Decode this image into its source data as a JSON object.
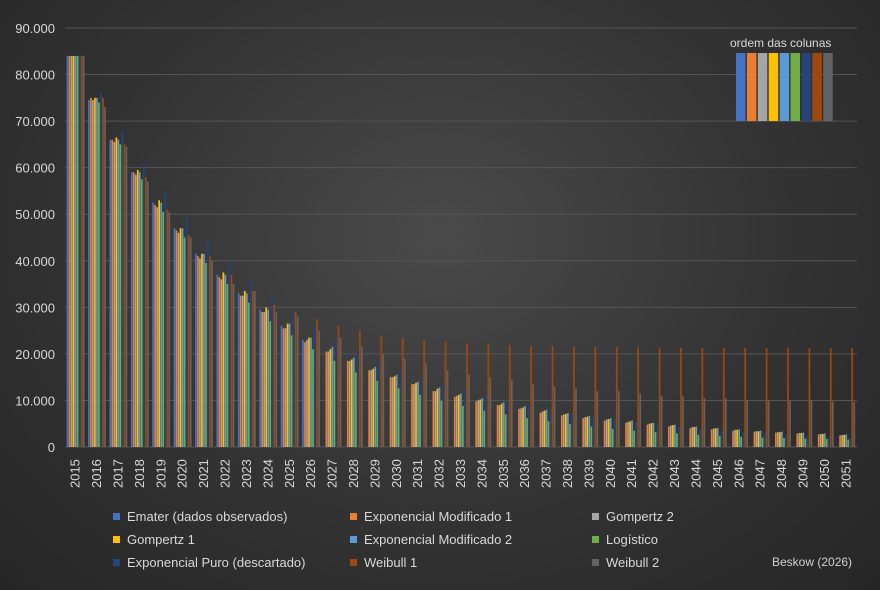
{
  "chart_data": {
    "type": "bar",
    "title": "",
    "xlabel": "",
    "ylabel": "",
    "ylim": [
      0,
      90000
    ],
    "y_ticks": [
      "0",
      "10.000",
      "20.000",
      "30.000",
      "40.000",
      "50.000",
      "60.000",
      "70.000",
      "80.000",
      "90.000"
    ],
    "grid": true,
    "legend_position": "bottom",
    "categories": [
      "2015",
      "2016",
      "2017",
      "2018",
      "2019",
      "2020",
      "2021",
      "2022",
      "2023",
      "2024",
      "2025",
      "2026",
      "2027",
      "2028",
      "2029",
      "2030",
      "2031",
      "2032",
      "2033",
      "2034",
      "2035",
      "2036",
      "2037",
      "2038",
      "2039",
      "2040",
      "2041",
      "2042",
      "2043",
      "2044",
      "2045",
      "2046",
      "2047",
      "2048",
      "2049",
      "2050",
      "2051"
    ],
    "series": [
      {
        "name": "Ematér (dados observados)",
        "color": "#4472c4",
        "values": [
          84000,
          74500,
          66000,
          59000,
          52500,
          47000,
          41500,
          37000,
          33000,
          29500,
          26000,
          23000,
          null,
          null,
          null,
          null,
          null,
          null,
          null,
          null,
          null,
          null,
          null,
          null,
          null,
          null,
          null,
          null,
          null,
          null,
          null,
          null,
          null,
          null,
          null,
          null,
          null
        ]
      },
      {
        "name": "Exponencial Modificado 1",
        "color": "#ed7d31",
        "values": [
          84000,
          75000,
          66000,
          59000,
          52000,
          46500,
          41000,
          36500,
          32500,
          29000,
          25500,
          22500,
          20500,
          18500,
          16500,
          15000,
          13500,
          12000,
          10800,
          9800,
          9000,
          8200,
          7400,
          6800,
          6200,
          5700,
          5200,
          4800,
          4400,
          4000,
          3800,
          3500,
          3300,
          3100,
          2900,
          2700,
          2500
        ]
      },
      {
        "name": "Gompertz 2",
        "color": "#a5a5a5",
        "values": [
          84000,
          74500,
          65500,
          58500,
          51500,
          46000,
          40500,
          36000,
          32500,
          29000,
          25500,
          23000,
          20500,
          18500,
          16500,
          15000,
          13500,
          12000,
          11000,
          10000,
          9000,
          8300,
          7600,
          7000,
          6400,
          5900,
          5400,
          5000,
          4600,
          4300,
          4000,
          3700,
          3400,
          3200,
          3000,
          2800,
          2600
        ]
      },
      {
        "name": "Gompertz 1",
        "color": "#ffc000",
        "values": [
          84000,
          75000,
          66500,
          59500,
          53000,
          47000,
          41500,
          37500,
          33500,
          30000,
          26500,
          23500,
          21000,
          18800,
          16800,
          15200,
          13800,
          12500,
          11200,
          10200,
          9300,
          8500,
          7800,
          7100,
          6500,
          6000,
          5500,
          5100,
          4700,
          4300,
          4000,
          3700,
          3400,
          3200,
          3000,
          2800,
          2600
        ]
      },
      {
        "name": "Exponencial Modificado 2",
        "color": "#5b9bd5",
        "values": [
          84000,
          75000,
          66000,
          59000,
          52500,
          47000,
          41500,
          37000,
          33000,
          29500,
          26500,
          23500,
          21500,
          19200,
          17200,
          15500,
          14000,
          12800,
          11500,
          10500,
          9600,
          8800,
          8000,
          7300,
          6700,
          6200,
          5700,
          5200,
          4800,
          4400,
          4100,
          3800,
          3500,
          3300,
          3100,
          2900,
          2700
        ]
      },
      {
        "name": "Logístico",
        "color": "#70ad47",
        "values": [
          84000,
          74000,
          65000,
          57500,
          50500,
          45000,
          39500,
          35000,
          31000,
          27000,
          24000,
          21000,
          18500,
          16000,
          14200,
          12600,
          11200,
          9900,
          8800,
          7800,
          7000,
          6200,
          5500,
          4900,
          4400,
          3900,
          3500,
          3200,
          2900,
          2600,
          2400,
          2200,
          2000,
          1900,
          1800,
          1700,
          1600
        ]
      },
      {
        "name": "Exponencial Puro (descartado)",
        "color": "#264478",
        "values": [
          84000,
          76000,
          68000,
          61000,
          55000,
          49500,
          44500,
          40000,
          36000,
          32500,
          29000,
          26000,
          23500,
          21000,
          19000,
          17000,
          15200,
          13700,
          12300,
          11100,
          10000,
          9000,
          8100,
          7300,
          6600,
          5900,
          5300,
          4800,
          4300,
          3900,
          3500,
          3200,
          2900,
          2600,
          2300,
          2100,
          1900
        ]
      },
      {
        "name": "Weibull 1",
        "color": "#9e480e",
        "values": [
          84000,
          75000,
          65000,
          58000,
          51000,
          45500,
          41000,
          37000,
          33500,
          30500,
          29000,
          27500,
          26000,
          25000,
          24000,
          23500,
          23000,
          22500,
          22300,
          22100,
          21900,
          21800,
          21700,
          21600,
          21500,
          21500,
          21400,
          21400,
          21300,
          21300,
          21300,
          21300,
          21200,
          21200,
          21200,
          21200,
          21200
        ]
      },
      {
        "name": "Weibull 2",
        "color": "#636363",
        "values": [
          84000,
          73000,
          64500,
          57000,
          50500,
          45000,
          40000,
          35000,
          33500,
          29000,
          28000,
          25000,
          23500,
          21500,
          20000,
          19000,
          18000,
          16500,
          15500,
          15000,
          14500,
          13500,
          13000,
          12500,
          12000,
          12000,
          11500,
          11000,
          11000,
          10500,
          10500,
          10000,
          10000,
          10000,
          10000,
          9800,
          9700
        ]
      }
    ]
  },
  "legend": {
    "items": [
      {
        "label": "Emater (dados observados)",
        "color": "#4472c4"
      },
      {
        "label": "Exponencial Modificado 1",
        "color": "#ed7d31"
      },
      {
        "label": "Gompertz 2",
        "color": "#a5a5a5"
      },
      {
        "label": "Gompertz 1",
        "color": "#ffc000"
      },
      {
        "label": "Exponencial Modificado 2",
        "color": "#5b9bd5"
      },
      {
        "label": "Logístico",
        "color": "#70ad47"
      },
      {
        "label": "Exponencial Puro (descartado)",
        "color": "#264478"
      },
      {
        "label": "Weibull 1",
        "color": "#9e480e"
      },
      {
        "label": "Weibull 2",
        "color": "#636363"
      }
    ]
  },
  "order_box": {
    "title": "ordem das colunas",
    "colors": [
      "#4472c4",
      "#ed7d31",
      "#a5a5a5",
      "#ffc000",
      "#5b9bd5",
      "#70ad47",
      "#264478",
      "#9e480e",
      "#636363"
    ]
  },
  "credit": "Beskow (2026)"
}
